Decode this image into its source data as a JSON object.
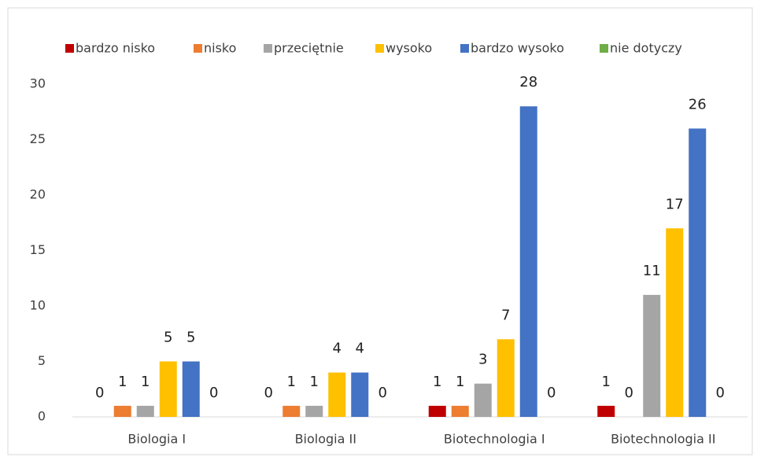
{
  "chart_data": {
    "type": "bar",
    "categories": [
      "Biologia I",
      "Biologia II",
      "Biotechnologia I",
      "Biotechnologia II"
    ],
    "series": [
      {
        "name": "bardzo nisko",
        "color": "#c00000",
        "values": [
          0,
          0,
          1,
          1
        ]
      },
      {
        "name": "nisko",
        "color": "#ed7d31",
        "values": [
          1,
          1,
          1,
          0
        ]
      },
      {
        "name": "przeciętnie",
        "color": "#a5a5a5",
        "values": [
          1,
          1,
          3,
          11
        ]
      },
      {
        "name": "wysoko",
        "color": "#ffc000",
        "values": [
          5,
          4,
          7,
          17
        ]
      },
      {
        "name": "bardzo wysoko",
        "color": "#4472c4",
        "values": [
          5,
          4,
          28,
          26
        ]
      },
      {
        "name": "nie dotyczy",
        "color": "#70ad47",
        "values": [
          0,
          0,
          0,
          0
        ]
      }
    ],
    "ylim": [
      0,
      30
    ],
    "yticks": [
      0,
      5,
      10,
      15,
      20,
      25,
      30
    ],
    "grid": false,
    "legend": "top"
  }
}
